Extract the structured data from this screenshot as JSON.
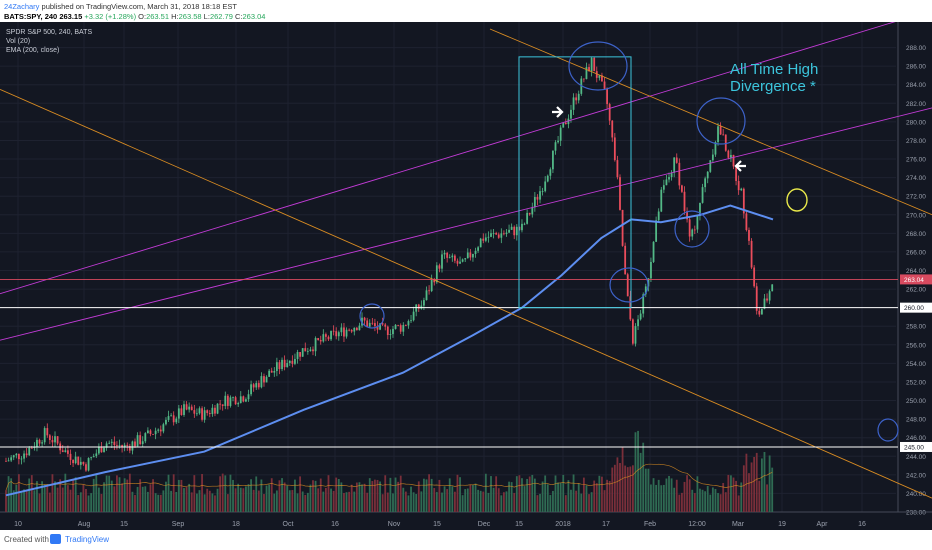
{
  "header": {
    "author": "24Zachary",
    "published_text": "published on TradingView.com, March 31, 2018 18:18 EST",
    "symbol": "BATS:SPY, 240",
    "last": "263.15",
    "change": "+3.32 (+1.28%)",
    "o_label": "O:",
    "o_val": "263.51",
    "h_label": "H:",
    "h_val": "263.58",
    "l_label": "L:",
    "l_val": "262.79",
    "c_label": "C:",
    "c_val": "263.04"
  },
  "legend": {
    "title": "SPDR S&P 500, 240, BATS",
    "vol": "Vol (20)",
    "ema": "EMA (200, close)"
  },
  "footer": {
    "created": "Created with",
    "brand": "TradingView"
  },
  "colors": {
    "bg": "#131722",
    "up": "#53b987",
    "down": "#eb4d5c",
    "ema": "#5d8ef0",
    "channel": "#c23bd6",
    "orange": "#d98c22",
    "white_line": "#ffffff",
    "red_line": "#d84a5f",
    "cyan": "#3cc5dc",
    "circle": "#3d62c9",
    "yellow": "#e8e84a"
  },
  "chart_data": {
    "type": "candlestick",
    "title": "SPDR S&P 500, 240, BATS",
    "ylim": [
      238,
      290
    ],
    "y_ticks": [
      "288.00",
      "286.00",
      "284.00",
      "282.00",
      "280.00",
      "278.00",
      "276.00",
      "274.00",
      "272.00",
      "270.00",
      "268.00",
      "266.00",
      "264.00",
      "262.00",
      "260.00",
      "258.00",
      "256.00",
      "254.00",
      "252.00",
      "250.00",
      "248.00",
      "246.00",
      "244.00",
      "242.00",
      "240.00",
      "238.00"
    ],
    "x_ticks": [
      "10",
      "Aug",
      "15",
      "Sep",
      "18",
      "Oct",
      "16",
      "Nov",
      "15",
      "Dec",
      "15",
      "2018",
      "17",
      "Feb",
      "12:00",
      "Mar",
      "19",
      "Apr",
      "16",
      "May"
    ],
    "price_label": "263.04",
    "hlines": [
      {
        "label": "260.00",
        "value": 260.0
      },
      {
        "label": "245.00",
        "value": 245.0
      },
      {
        "label": "263.04",
        "value": 263.04
      }
    ],
    "annotation": "All Time High\nDivergence *",
    "ema_series_name": "EMA (200, close)",
    "volume_series_name": "Vol (20)",
    "key_price_path": [
      {
        "t": 0,
        "p": 243.5
      },
      {
        "t": 20,
        "p": 244.5
      },
      {
        "t": 40,
        "p": 246.5
      },
      {
        "t": 60,
        "p": 244.5
      },
      {
        "t": 80,
        "p": 243.0
      },
      {
        "t": 100,
        "p": 245.5
      },
      {
        "t": 120,
        "p": 245.0
      },
      {
        "t": 140,
        "p": 246.0
      },
      {
        "t": 160,
        "p": 247.5
      },
      {
        "t": 180,
        "p": 249.0
      },
      {
        "t": 200,
        "p": 248.5
      },
      {
        "t": 220,
        "p": 250.0
      },
      {
        "t": 240,
        "p": 250.5
      },
      {
        "t": 260,
        "p": 252.5
      },
      {
        "t": 280,
        "p": 254.0
      },
      {
        "t": 300,
        "p": 255.5
      },
      {
        "t": 320,
        "p": 256.5
      },
      {
        "t": 340,
        "p": 257.5
      },
      {
        "t": 360,
        "p": 258.5
      },
      {
        "t": 380,
        "p": 257.5
      },
      {
        "t": 400,
        "p": 258.0
      },
      {
        "t": 420,
        "p": 260.5
      },
      {
        "t": 440,
        "p": 265.5
      },
      {
        "t": 460,
        "p": 264.5
      },
      {
        "t": 480,
        "p": 267.5
      },
      {
        "t": 500,
        "p": 268.0
      },
      {
        "t": 520,
        "p": 268.5
      },
      {
        "t": 540,
        "p": 273.0
      },
      {
        "t": 560,
        "p": 279.0
      },
      {
        "t": 575,
        "p": 283.0
      },
      {
        "t": 590,
        "p": 286.5
      },
      {
        "t": 605,
        "p": 282.5
      },
      {
        "t": 615,
        "p": 275.0
      },
      {
        "t": 625,
        "p": 262.0
      },
      {
        "t": 632,
        "p": 256.5
      },
      {
        "t": 645,
        "p": 262.0
      },
      {
        "t": 660,
        "p": 272.0
      },
      {
        "t": 675,
        "p": 276.0
      },
      {
        "t": 690,
        "p": 267.0
      },
      {
        "t": 705,
        "p": 274.0
      },
      {
        "t": 718,
        "p": 279.5
      },
      {
        "t": 730,
        "p": 276.0
      },
      {
        "t": 742,
        "p": 272.0
      },
      {
        "t": 750,
        "p": 266.0
      },
      {
        "t": 757,
        "p": 259.0
      },
      {
        "t": 767,
        "p": 261.0
      },
      {
        "t": 773,
        "p": 263.04
      }
    ]
  }
}
